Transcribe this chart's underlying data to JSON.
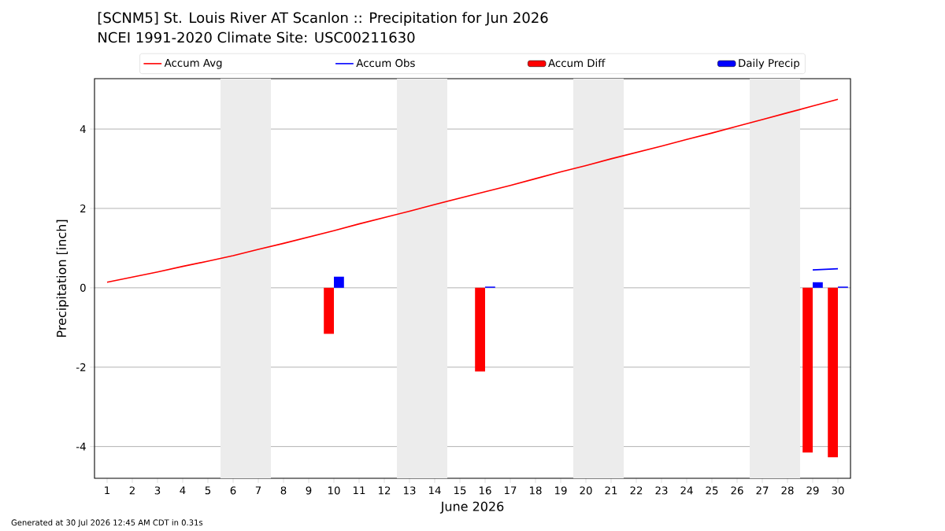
{
  "chart_data": {
    "type": "bar",
    "title": "[SCNM5] St. Louis River  AT Scanlon :: Precipitation for Jun 2026",
    "subtitle": "NCEI 1991-2020 Climate Site: USC00211630",
    "xlabel": "June 2026",
    "ylabel": "Precipitation [inch]",
    "x": [
      1,
      2,
      3,
      4,
      5,
      6,
      7,
      8,
      9,
      10,
      11,
      12,
      13,
      14,
      15,
      16,
      17,
      18,
      19,
      20,
      21,
      22,
      23,
      24,
      25,
      26,
      27,
      28,
      29,
      30
    ],
    "series": [
      {
        "name": "Accum Avg",
        "type": "line",
        "color": "#ff0000",
        "values": [
          0.14,
          0.27,
          0.4,
          0.54,
          0.67,
          0.81,
          0.97,
          1.12,
          1.28,
          1.44,
          1.61,
          1.77,
          1.93,
          2.1,
          2.26,
          2.42,
          2.58,
          2.75,
          2.92,
          3.08,
          3.25,
          3.41,
          3.57,
          3.74,
          3.9,
          4.07,
          4.24,
          4.41,
          4.58,
          4.75
        ]
      },
      {
        "name": "Accum Obs",
        "type": "line",
        "color": "#0000ff",
        "values": [
          null,
          null,
          null,
          null,
          null,
          null,
          null,
          null,
          null,
          null,
          null,
          null,
          null,
          null,
          null,
          null,
          null,
          null,
          null,
          null,
          null,
          null,
          null,
          null,
          null,
          null,
          null,
          null,
          0.45,
          0.48
        ]
      },
      {
        "name": "Accum Diff",
        "color": "#ff0000",
        "values": [
          null,
          null,
          null,
          null,
          null,
          null,
          null,
          null,
          null,
          -1.16,
          null,
          null,
          null,
          null,
          null,
          -2.11,
          null,
          null,
          null,
          null,
          null,
          null,
          null,
          null,
          null,
          null,
          null,
          null,
          -4.15,
          -4.27
        ]
      },
      {
        "name": "Daily Precip",
        "color": "#0000ff",
        "values": [
          null,
          null,
          null,
          null,
          null,
          null,
          null,
          null,
          null,
          0.28,
          null,
          null,
          null,
          null,
          null,
          0.03,
          null,
          null,
          null,
          null,
          null,
          null,
          null,
          null,
          null,
          null,
          null,
          null,
          0.14,
          0.03
        ]
      }
    ],
    "xlim": [
      0.5,
      30.5
    ],
    "ylim": [
      -4.8,
      5.27
    ],
    "xticks": [
      1,
      2,
      3,
      4,
      5,
      6,
      7,
      8,
      9,
      10,
      11,
      12,
      13,
      14,
      15,
      16,
      17,
      18,
      19,
      20,
      21,
      22,
      23,
      24,
      25,
      26,
      27,
      28,
      29,
      30
    ],
    "yticks": [
      -4,
      -2,
      0,
      2,
      4
    ],
    "bands": [
      {
        "axis": "x",
        "from": 5.5,
        "to": 7.5,
        "color": "#ececec"
      },
      {
        "axis": "x",
        "from": 12.5,
        "to": 14.5,
        "color": "#ececec"
      },
      {
        "axis": "x",
        "from": 19.5,
        "to": 21.5,
        "color": "#ececec"
      },
      {
        "axis": "x",
        "from": 26.5,
        "to": 28.5,
        "color": "#ececec"
      }
    ],
    "grid": "y",
    "legend": "top",
    "annotations": [
      "Generated at 30 Jul 2026 12:45 AM CDT in 0.31s"
    ]
  }
}
